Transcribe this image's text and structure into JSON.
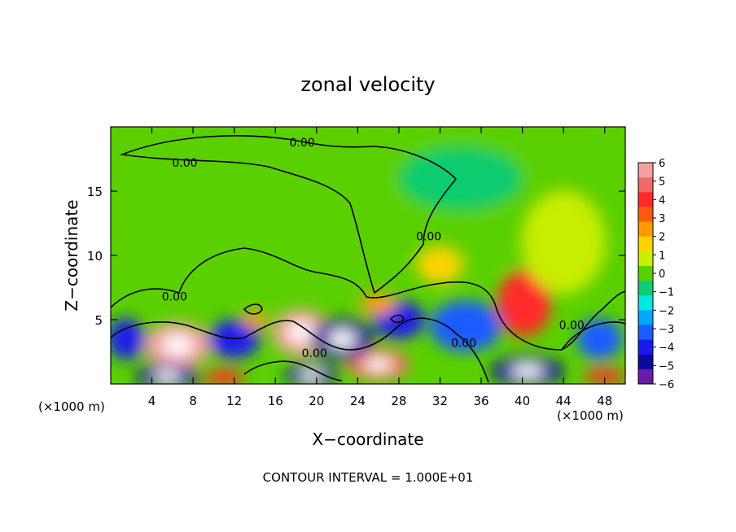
{
  "chart_data": {
    "type": "heatmap",
    "title": "zonal velocity",
    "xlabel": "X−coordinate",
    "ylabel": "Z−coordinate",
    "x_unit_left": "(×1000 m)",
    "x_unit_right": "(×1000 m)",
    "footer": "CONTOUR INTERVAL = 1.000E+01",
    "xlim": [
      0,
      50
    ],
    "ylim": [
      0,
      20
    ],
    "x_ticks": [
      4,
      8,
      12,
      16,
      20,
      24,
      28,
      32,
      36,
      40,
      44,
      48
    ],
    "x_tick_labels": [
      "4",
      "8",
      "12",
      "16",
      "20",
      "24",
      "28",
      "32",
      "36",
      "40",
      "44",
      "48"
    ],
    "y_ticks": [
      5,
      10,
      15
    ],
    "y_tick_labels": [
      "5",
      "10",
      "15"
    ],
    "colorbar": {
      "range": [
        -6,
        6
      ],
      "tick_labels": [
        "6",
        "5",
        "4",
        "3",
        "2",
        "1",
        "0",
        "−1",
        "−2",
        "−3",
        "−4",
        "−5",
        "−6"
      ],
      "colors": [
        "#f4a0a0",
        "#f06a6a",
        "#ff2a2a",
        "#ff5a10",
        "#ff9a00",
        "#ffd400",
        "#c8ee00",
        "#5ad000",
        "#10cc70",
        "#00e8e0",
        "#00a6ff",
        "#1c5cff",
        "#1a1aee",
        "#0a0aa0",
        "#6a1aa6"
      ]
    },
    "contour_labels": [
      {
        "text": "0.00",
        "x": 18.6,
        "z": 18.8
      },
      {
        "text": "0.00",
        "x": 7.2,
        "z": 17.2
      },
      {
        "text": "0.00",
        "x": 30.9,
        "z": 11.5
      },
      {
        "text": "0.00",
        "x": 6.2,
        "z": 6.8
      },
      {
        "text": "0.00",
        "x": 19.8,
        "z": 2.4
      },
      {
        "text": "0.00",
        "x": 34.3,
        "z": 3.2
      },
      {
        "text": "0.00",
        "x": 44.8,
        "z": 4.6
      }
    ],
    "features": [
      {
        "x": 6.5,
        "z": 3.0,
        "value": 6,
        "rx": 3.2,
        "rz": 1.8
      },
      {
        "x": 18.5,
        "z": 4.0,
        "value": 6,
        "rx": 2.8,
        "rz": 1.8
      },
      {
        "x": 40.2,
        "z": 6.3,
        "value": 4,
        "rx": 2.6,
        "rz": 2.6
      },
      {
        "x": 32.0,
        "z": 9.2,
        "value": 2,
        "rx": 2.2,
        "rz": 1.4
      },
      {
        "x": 26.0,
        "z": 1.5,
        "value": 5,
        "rx": 3.0,
        "rz": 1.2
      },
      {
        "x": 22.5,
        "z": 3.5,
        "value": -5,
        "rx": 3.0,
        "rz": 1.6
      },
      {
        "x": 28.0,
        "z": 5.0,
        "value": -4,
        "rx": 2.5,
        "rz": 1.5
      },
      {
        "x": 34.5,
        "z": 4.5,
        "value": -3,
        "rx": 3.5,
        "rz": 2.0
      },
      {
        "x": 12.0,
        "z": 3.5,
        "value": -4,
        "rx": 2.5,
        "rz": 1.5
      },
      {
        "x": 5.5,
        "z": 0.6,
        "value": -5,
        "rx": 3.0,
        "rz": 1.0
      },
      {
        "x": 19.5,
        "z": 0.7,
        "value": -5,
        "rx": 2.5,
        "rz": 1.0
      },
      {
        "x": 40.5,
        "z": 1.0,
        "value": -5,
        "rx": 3.5,
        "rz": 1.2
      },
      {
        "x": 1.5,
        "z": 3.5,
        "value": -4,
        "rx": 1.8,
        "rz": 1.6
      },
      {
        "x": 47.5,
        "z": 3.5,
        "value": -3,
        "rx": 2.2,
        "rz": 1.6
      },
      {
        "x": 26.0,
        "z": 6.2,
        "value": 3,
        "rx": 1.8,
        "rz": 0.8
      },
      {
        "x": 14.0,
        "z": 5.0,
        "value": 3,
        "rx": 1.2,
        "rz": 0.7
      },
      {
        "x": 11.0,
        "z": 0.5,
        "value": 4,
        "rx": 2.0,
        "rz": 0.6
      },
      {
        "x": 48.0,
        "z": 0.6,
        "value": 4,
        "rx": 2.0,
        "rz": 0.6
      },
      {
        "x": 34.0,
        "z": 16.0,
        "value": -1,
        "rx": 6.0,
        "rz": 2.5
      },
      {
        "x": 44.0,
        "z": 11.0,
        "value": 1,
        "rx": 4.0,
        "rz": 4.0
      }
    ]
  }
}
